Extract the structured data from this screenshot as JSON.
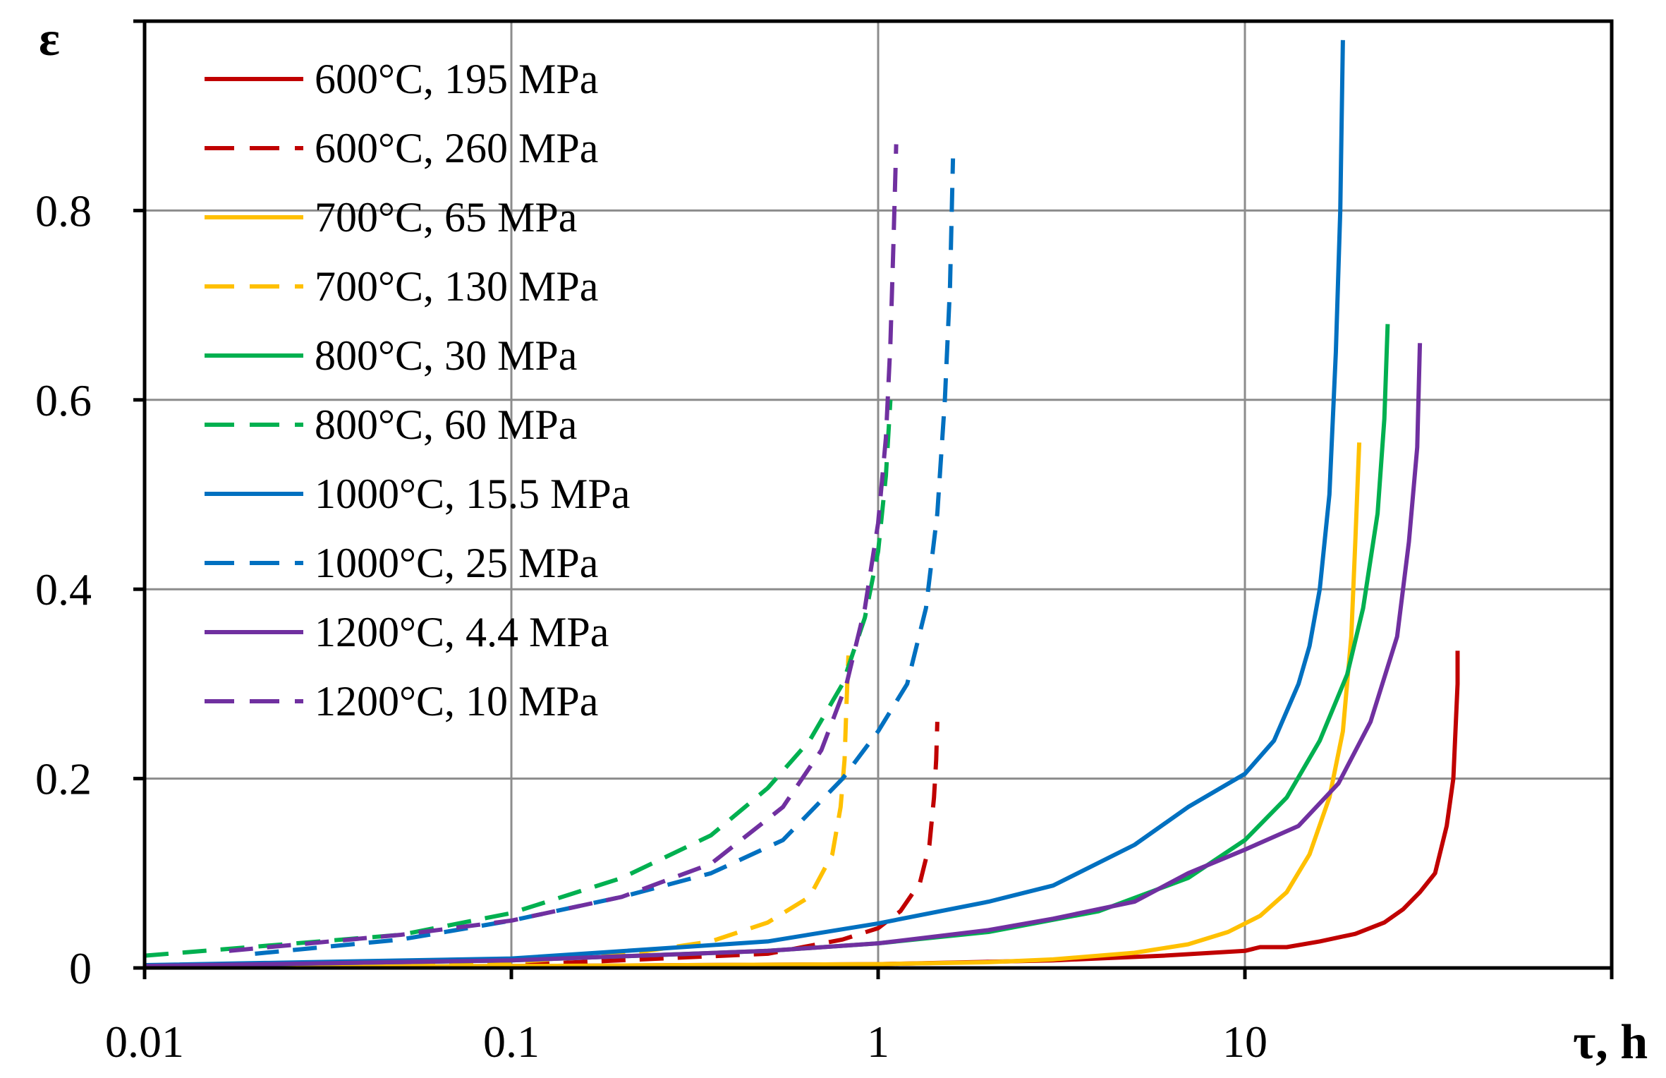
{
  "chart_data": {
    "type": "line",
    "title": "",
    "xlabel": "τ, h",
    "ylabel": "ε",
    "xscale": "log",
    "xlim": [
      0.01,
      100
    ],
    "ylim": [
      0,
      1.0
    ],
    "x_ticks": [
      0.01,
      0.1,
      1,
      10,
      100
    ],
    "x_tick_labels": [
      "0.01",
      "0.1",
      "1",
      "10",
      ""
    ],
    "y_ticks": [
      0,
      0.2,
      0.4,
      0.6,
      0.8,
      1.0
    ],
    "y_tick_labels": [
      "0",
      "0.2",
      "0.4",
      "0.6",
      "0.8",
      ""
    ],
    "grid": true,
    "legend_position": "top-left",
    "series": [
      {
        "name": "600°C, 195 MPa",
        "color": "#C00000",
        "dash": "solid",
        "points": [
          [
            0.01,
            0.001
          ],
          [
            0.1,
            0.002
          ],
          [
            1,
            0.004
          ],
          [
            3,
            0.008
          ],
          [
            6,
            0.013
          ],
          [
            10,
            0.018
          ],
          [
            11,
            0.022
          ],
          [
            13,
            0.022
          ],
          [
            16,
            0.028
          ],
          [
            20,
            0.036
          ],
          [
            24,
            0.048
          ],
          [
            27,
            0.062
          ],
          [
            30,
            0.08
          ],
          [
            33,
            0.1
          ],
          [
            35.5,
            0.15
          ],
          [
            37,
            0.2
          ],
          [
            37.5,
            0.25
          ],
          [
            38,
            0.3
          ],
          [
            38,
            0.335
          ]
        ]
      },
      {
        "name": "600°C, 260 MPa",
        "color": "#C00000",
        "dash": "dashed",
        "points": [
          [
            0.01,
            0.001
          ],
          [
            0.1,
            0.003
          ],
          [
            0.5,
            0.015
          ],
          [
            0.8,
            0.03
          ],
          [
            1,
            0.042
          ],
          [
            1.15,
            0.06
          ],
          [
            1.3,
            0.09
          ],
          [
            1.38,
            0.13
          ],
          [
            1.42,
            0.18
          ],
          [
            1.44,
            0.22
          ],
          [
            1.45,
            0.26
          ]
        ]
      },
      {
        "name": "700°C, 65 MPa",
        "color": "#FFC000",
        "dash": "solid",
        "points": [
          [
            0.01,
            0.001
          ],
          [
            0.1,
            0.002
          ],
          [
            1,
            0.004
          ],
          [
            2,
            0.006
          ],
          [
            3,
            0.009
          ],
          [
            5,
            0.016
          ],
          [
            7,
            0.025
          ],
          [
            9,
            0.038
          ],
          [
            11,
            0.055
          ],
          [
            13,
            0.08
          ],
          [
            15,
            0.12
          ],
          [
            17,
            0.18
          ],
          [
            18.5,
            0.25
          ],
          [
            19.5,
            0.35
          ],
          [
            20,
            0.45
          ],
          [
            20.5,
            0.555
          ]
        ]
      },
      {
        "name": "700°C, 130 MPa",
        "color": "#FFC000",
        "dash": "dashed",
        "points": [
          [
            0.01,
            0.001
          ],
          [
            0.1,
            0.006
          ],
          [
            0.2,
            0.014
          ],
          [
            0.35,
            0.028
          ],
          [
            0.5,
            0.048
          ],
          [
            0.65,
            0.075
          ],
          [
            0.75,
            0.12
          ],
          [
            0.79,
            0.17
          ],
          [
            0.81,
            0.22
          ],
          [
            0.82,
            0.28
          ],
          [
            0.83,
            0.33
          ]
        ]
      },
      {
        "name": "800°C, 30 MPa",
        "color": "#00B050",
        "dash": "solid",
        "points": [
          [
            0.01,
            0.002
          ],
          [
            0.1,
            0.008
          ],
          [
            0.5,
            0.018
          ],
          [
            1,
            0.026
          ],
          [
            2,
            0.038
          ],
          [
            4,
            0.06
          ],
          [
            7,
            0.095
          ],
          [
            10,
            0.135
          ],
          [
            13,
            0.18
          ],
          [
            16,
            0.24
          ],
          [
            19,
            0.31
          ],
          [
            21,
            0.38
          ],
          [
            23,
            0.48
          ],
          [
            24,
            0.58
          ],
          [
            24.5,
            0.68
          ]
        ]
      },
      {
        "name": "800°C, 60 MPa",
        "color": "#00B050",
        "dash": "dashed",
        "points": [
          [
            0.01,
            0.013
          ],
          [
            0.05,
            0.035
          ],
          [
            0.1,
            0.058
          ],
          [
            0.2,
            0.095
          ],
          [
            0.35,
            0.14
          ],
          [
            0.5,
            0.19
          ],
          [
            0.65,
            0.24
          ],
          [
            0.8,
            0.3
          ],
          [
            0.92,
            0.37
          ],
          [
            1,
            0.44
          ],
          [
            1.05,
            0.52
          ],
          [
            1.08,
            0.6
          ]
        ]
      },
      {
        "name": "1000°C, 15.5 MPa",
        "color": "#0070C0",
        "dash": "solid",
        "points": [
          [
            0.01,
            0.003
          ],
          [
            0.1,
            0.01
          ],
          [
            0.5,
            0.028
          ],
          [
            1,
            0.047
          ],
          [
            2,
            0.07
          ],
          [
            3,
            0.087
          ],
          [
            5,
            0.13
          ],
          [
            7,
            0.17
          ],
          [
            10,
            0.205
          ],
          [
            12,
            0.24
          ],
          [
            14,
            0.3
          ],
          [
            15,
            0.34
          ],
          [
            16,
            0.4
          ],
          [
            17,
            0.5
          ],
          [
            17.7,
            0.65
          ],
          [
            18.2,
            0.8
          ],
          [
            18.5,
            0.98
          ]
        ]
      },
      {
        "name": "1000°C, 25 MPa",
        "color": "#0070C0",
        "dash": "dashed",
        "points": [
          [
            0.02,
            0.015
          ],
          [
            0.05,
            0.03
          ],
          [
            0.1,
            0.05
          ],
          [
            0.2,
            0.075
          ],
          [
            0.35,
            0.1
          ],
          [
            0.55,
            0.135
          ],
          [
            0.8,
            0.2
          ],
          [
            1,
            0.25
          ],
          [
            1.2,
            0.3
          ],
          [
            1.35,
            0.38
          ],
          [
            1.45,
            0.48
          ],
          [
            1.52,
            0.6
          ],
          [
            1.57,
            0.72
          ],
          [
            1.6,
            0.855
          ]
        ]
      },
      {
        "name": "1200°C, 4.4 MPa",
        "color": "#7030A0",
        "dash": "solid",
        "points": [
          [
            0.01,
            0.002
          ],
          [
            0.1,
            0.008
          ],
          [
            0.5,
            0.018
          ],
          [
            1,
            0.026
          ],
          [
            2,
            0.04
          ],
          [
            3,
            0.052
          ],
          [
            5,
            0.07
          ],
          [
            7,
            0.1
          ],
          [
            10,
            0.125
          ],
          [
            14,
            0.15
          ],
          [
            18,
            0.195
          ],
          [
            22,
            0.26
          ],
          [
            26,
            0.35
          ],
          [
            28,
            0.45
          ],
          [
            29.5,
            0.55
          ],
          [
            30,
            0.66
          ]
        ]
      },
      {
        "name": "1200°C, 10 MPa",
        "color": "#7030A0",
        "dash": "dashed",
        "points": [
          [
            0.017,
            0.018
          ],
          [
            0.05,
            0.035
          ],
          [
            0.1,
            0.05
          ],
          [
            0.2,
            0.075
          ],
          [
            0.35,
            0.11
          ],
          [
            0.55,
            0.17
          ],
          [
            0.7,
            0.23
          ],
          [
            0.82,
            0.3
          ],
          [
            0.92,
            0.38
          ],
          [
            1,
            0.47
          ],
          [
            1.05,
            0.56
          ],
          [
            1.08,
            0.66
          ],
          [
            1.1,
            0.76
          ],
          [
            1.12,
            0.87
          ]
        ]
      }
    ]
  }
}
